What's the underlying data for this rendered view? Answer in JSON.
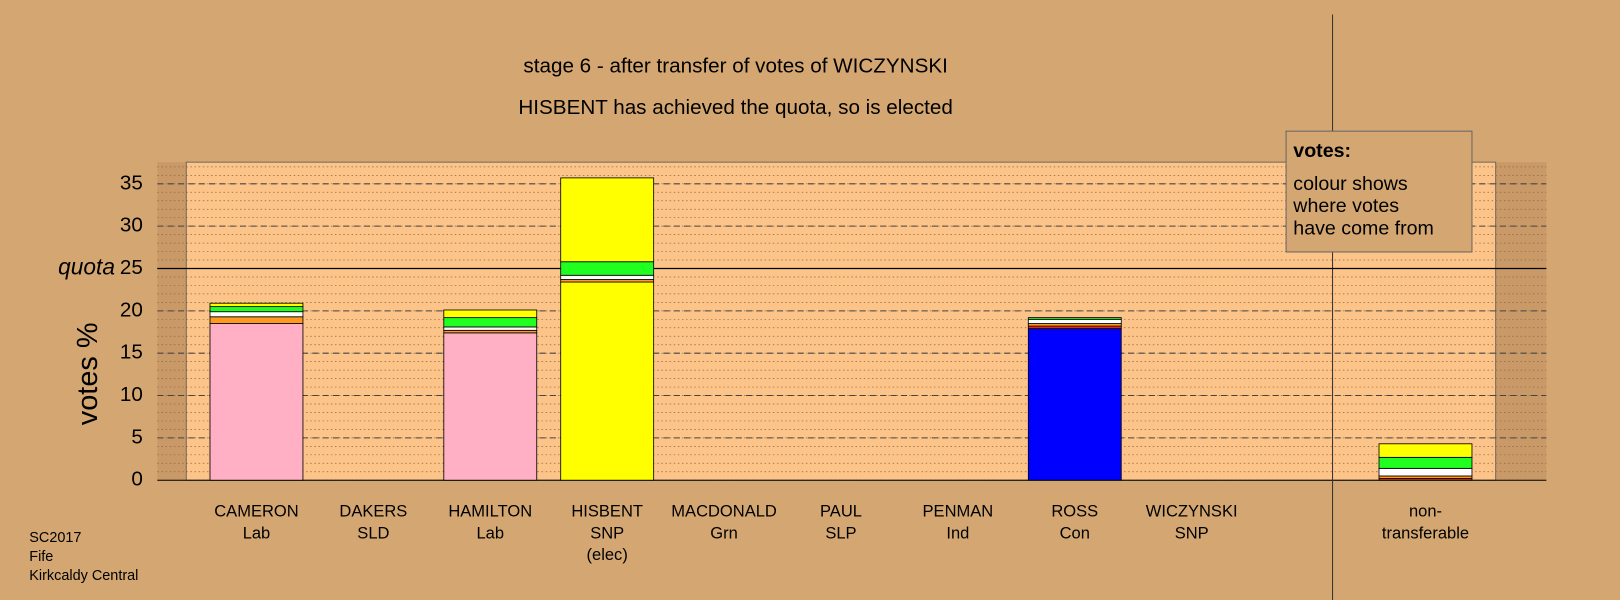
{
  "chart_data": {
    "type": "stacked_bar",
    "title_lines": [
      "stage 6 - after transfer of votes of WICZYNSKI",
      "HISBENT has achieved the quota, so is elected"
    ],
    "y_label": "votes %",
    "categories": [
      [
        "CAMERON",
        "Lab"
      ],
      [
        "DAKERS",
        "SLD"
      ],
      [
        "HAMILTON",
        "Lab"
      ],
      [
        "HISBENT",
        "SNP",
        "(elec)"
      ],
      [
        "MACDONALD",
        "Grn"
      ],
      [
        "PAUL",
        "SLP"
      ],
      [
        "PENMAN",
        "Ind"
      ],
      [
        "ROSS",
        "Con"
      ],
      [
        "WICZYNSKI",
        "SNP"
      ],
      [
        "non-",
        "transferable"
      ]
    ],
    "series": [
      {
        "color": "#ffb0c4",
        "values": [
          18.5,
          0,
          17.4,
          0,
          0,
          0,
          0,
          0,
          0,
          0
        ]
      },
      {
        "color": "#0000ff",
        "values": [
          0,
          0,
          0,
          0,
          0,
          0,
          0,
          17.9,
          0,
          0
        ]
      },
      {
        "color": "#ffff00",
        "values": [
          0,
          0,
          0,
          23.4,
          0,
          0,
          0,
          0,
          0,
          0
        ]
      },
      {
        "color": "#e03000",
        "values": [
          0,
          0,
          0,
          0,
          0,
          0,
          0,
          0.3,
          0,
          0.2
        ]
      },
      {
        "color": "#ff9a20",
        "values": [
          0.8,
          0,
          0.3,
          0.3,
          0,
          0,
          0,
          0.3,
          0,
          0.3
        ]
      },
      {
        "color": "#ffffff",
        "values": [
          0.6,
          0,
          0.4,
          0.5,
          0,
          0,
          0,
          0.5,
          0,
          0.9
        ]
      },
      {
        "color": "#20ff20",
        "values": [
          0.6,
          0,
          1.1,
          1.6,
          0,
          0,
          0,
          0.2,
          0,
          1.3
        ]
      },
      {
        "color": "#ffff00",
        "values": [
          0.4,
          0,
          0.9,
          9.9,
          0,
          0,
          0,
          0,
          0,
          1.6
        ]
      }
    ],
    "ylim": [
      0,
      37.5
    ],
    "yticks": [
      0,
      5,
      10,
      15,
      20,
      25,
      30,
      35
    ],
    "grid": true,
    "minor_grid": true,
    "quota": {
      "label": "quota",
      "value": 25
    },
    "legend_box": {
      "heading": "votes:",
      "lines": [
        "colour shows",
        "where votes",
        "have come from"
      ]
    },
    "footer": [
      "SC2017",
      "Fife",
      "Kirkcaldy Central"
    ]
  }
}
